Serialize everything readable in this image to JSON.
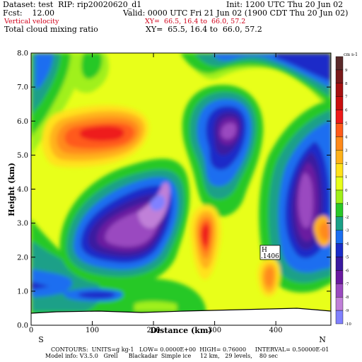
{
  "header": {
    "dataset": "Dataset: test  RIP: rip20020620_d1",
    "init": "Init: 1200 UTC Thu 20 Jun 02",
    "fcst": "Fcst:    12.00",
    "valid": "Valid: 0000 UTC Fri 21 Jun 02 (1900 CDT Thu 20 Jun 02)",
    "field1": "Vertical velocity",
    "field1_xy": "XY=  66.5, 16.4 to  66.0, 57.2",
    "field2": "Total cloud mixing ratio",
    "field2_xy": "XY=  65.5, 16.4 to  66.0, 57.2"
  },
  "chart_data": {
    "type": "heatmap",
    "title": "Vertical velocity",
    "xlabel": "Distance (km)",
    "ylabel": "Height (km)",
    "xlim": [
      0,
      490
    ],
    "ylim": [
      0,
      8
    ],
    "x_ticks": [
      "0",
      "100",
      "200",
      "300",
      "400"
    ],
    "y_ticks": [
      "0.0",
      "1.0",
      "2.0",
      "3.0",
      "4.0",
      "5.0",
      "6.0",
      "7.0",
      "8.0"
    ],
    "endpoints": {
      "left": "S",
      "right": "N"
    },
    "colorbar": {
      "unit": "cm s-1",
      "levels": [
        "9",
        "8",
        "7",
        "6",
        "5",
        "4",
        "3",
        "2",
        "1",
        "0",
        "-1",
        "-2",
        "-3",
        "-4",
        "-5",
        "-6",
        "-7",
        "-8",
        "-9",
        "-10"
      ],
      "colors": [
        "#5a2a2a",
        "#7a1a1a",
        "#a51010",
        "#c80f0f",
        "#ee1a1a",
        "#ff5a1a",
        "#ff8a1a",
        "#ffb21a",
        "#ffe21a",
        "#e8ff1a",
        "#a0f01a",
        "#28c828",
        "#1aa088",
        "#1a6ef0",
        "#1a2cc8",
        "#3a1aa0",
        "#6a1aa0",
        "#9a4ac0",
        "#c080d8",
        "#8080ff"
      ]
    },
    "annotation": {
      "label": "H",
      "value": ".1406",
      "x": 385,
      "y": 2.2
    },
    "grid": false,
    "legend": "right"
  },
  "footer": {
    "line1": "CONTOURS:  UNITS=g kg-1   LOW= 0.0000E+00  HIGH= 0.76000     INTERVAL= 0.50000E-01",
    "line2": "Model info: V3.5.0   Grell      Blackadar  Simple ice     12 km,   29 levels,    80 sec"
  }
}
